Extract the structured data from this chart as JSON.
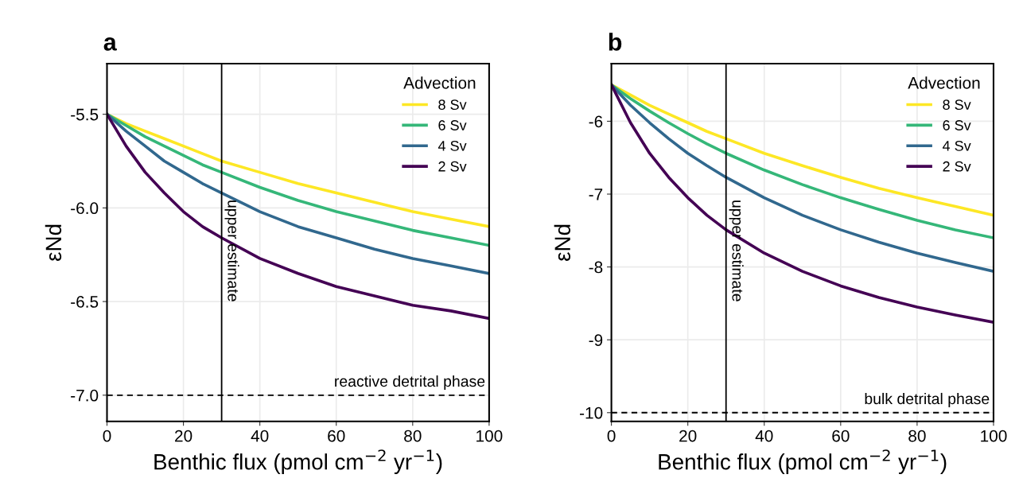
{
  "chart_data": [
    {
      "type": "line",
      "title": "a",
      "xlabel": "Benthic flux (pmol cm$^{−2}$ yr$^{−1}$)",
      "ylabel": "εNd",
      "legend_title": "Advection",
      "legend": "top right",
      "grid": true,
      "line_style": "solid",
      "marker": "none",
      "x": [
        0,
        5,
        10,
        15,
        20,
        25,
        30,
        40,
        50,
        60,
        70,
        80,
        90,
        100
      ],
      "xlim": [
        0,
        100
      ],
      "xticks": [
        0,
        20,
        40,
        60,
        80,
        100
      ],
      "ylim": [
        -7.14,
        -5.23
      ],
      "yticks": [
        {
          "value": -7.0,
          "label": "-7.0"
        },
        {
          "value": -6.5,
          "label": "-6.5"
        },
        {
          "value": -6.0,
          "label": "-6.0"
        },
        {
          "value": -5.5,
          "label": "-5.5"
        }
      ],
      "series": [
        {
          "name": "8 Sv",
          "color": "#fde725",
          "values": [
            -5.5,
            -5.55,
            -5.59,
            -5.63,
            -5.67,
            -5.71,
            -5.75,
            -5.81,
            -5.87,
            -5.92,
            -5.97,
            -6.02,
            -6.06,
            -6.1
          ]
        },
        {
          "name": "6 Sv",
          "color": "#35b779",
          "values": [
            -5.5,
            -5.56,
            -5.62,
            -5.67,
            -5.72,
            -5.77,
            -5.81,
            -5.89,
            -5.96,
            -6.02,
            -6.07,
            -6.12,
            -6.16,
            -6.2
          ]
        },
        {
          "name": "4 Sv",
          "color": "#31688e",
          "values": [
            -5.5,
            -5.59,
            -5.67,
            -5.75,
            -5.81,
            -5.87,
            -5.92,
            -6.02,
            -6.1,
            -6.16,
            -6.22,
            -6.27,
            -6.31,
            -6.35
          ]
        },
        {
          "name": "2 Sv",
          "color": "#440154",
          "values": [
            -5.5,
            -5.67,
            -5.81,
            -5.92,
            -6.02,
            -6.1,
            -6.16,
            -6.27,
            -6.35,
            -6.42,
            -6.47,
            -6.52,
            -6.55,
            -6.59
          ]
        }
      ],
      "ref_lines": [
        {
          "axis": "x",
          "value": 30,
          "label": "upper estimate",
          "color": "#000000",
          "line_style": "solid"
        },
        {
          "axis": "y",
          "value": -7.0,
          "label": "reactive detrital phase",
          "color": "#000000",
          "line_style": "dashed"
        }
      ]
    },
    {
      "type": "line",
      "title": "b",
      "xlabel": "Benthic flux (pmol cm$^{−2}$ yr$^{−1}$)",
      "ylabel": "εNd",
      "legend_title": "Advection",
      "legend": "top right",
      "grid": true,
      "line_style": "solid",
      "marker": "none",
      "x": [
        0,
        5,
        10,
        15,
        20,
        25,
        30,
        40,
        50,
        60,
        70,
        80,
        90,
        100
      ],
      "xlim": [
        0,
        100
      ],
      "xticks": [
        0,
        20,
        40,
        60,
        80,
        100
      ],
      "ylim": [
        -10.12,
        -5.21
      ],
      "yticks": [
        -10,
        -9,
        -8,
        -7,
        -6
      ],
      "series": [
        {
          "name": "8 Sv",
          "color": "#fde725",
          "values": [
            -5.5,
            -5.64,
            -5.78,
            -5.9,
            -6.02,
            -6.14,
            -6.24,
            -6.44,
            -6.61,
            -6.77,
            -6.92,
            -7.05,
            -7.17,
            -7.29
          ]
        },
        {
          "name": "6 Sv",
          "color": "#35b779",
          "values": [
            -5.5,
            -5.69,
            -5.86,
            -6.02,
            -6.17,
            -6.31,
            -6.44,
            -6.67,
            -6.87,
            -7.05,
            -7.21,
            -7.36,
            -7.49,
            -7.6
          ]
        },
        {
          "name": "4 Sv",
          "color": "#31688e",
          "values": [
            -5.5,
            -5.78,
            -6.02,
            -6.24,
            -6.44,
            -6.61,
            -6.77,
            -7.05,
            -7.29,
            -7.49,
            -7.66,
            -7.81,
            -7.94,
            -8.06
          ]
        },
        {
          "name": "2 Sv",
          "color": "#440154",
          "values": [
            -5.5,
            -6.02,
            -6.44,
            -6.77,
            -7.05,
            -7.29,
            -7.49,
            -7.81,
            -8.06,
            -8.26,
            -8.42,
            -8.55,
            -8.66,
            -8.76
          ]
        }
      ],
      "ref_lines": [
        {
          "axis": "x",
          "value": 30,
          "label": "upper estimate",
          "color": "#000000",
          "line_style": "solid"
        },
        {
          "axis": "y",
          "value": -10,
          "label": "bulk detrital phase",
          "color": "#000000",
          "line_style": "dashed"
        }
      ]
    }
  ]
}
